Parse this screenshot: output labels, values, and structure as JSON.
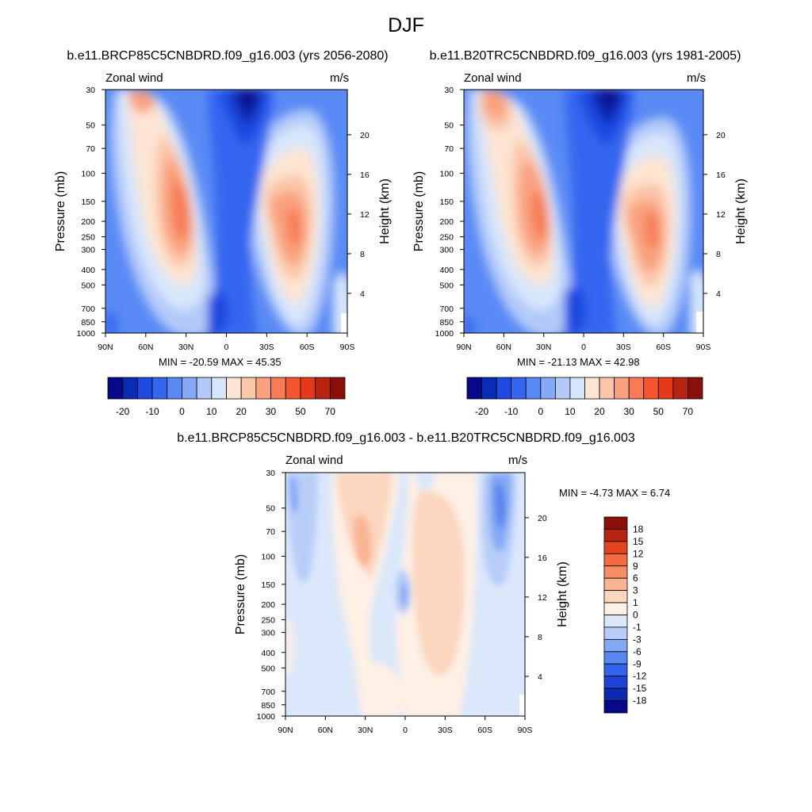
{
  "page": {
    "title": "DJF"
  },
  "palettes": {
    "full": [
      "#08088a",
      "#0a2bb5",
      "#1f4ae0",
      "#3566f0",
      "#5a8af5",
      "#86a9f7",
      "#b3caf9",
      "#d8e6fb",
      "#fde5d2",
      "#fbc6aa",
      "#f9a07e",
      "#f77b55",
      "#f5562f",
      "#e5391a",
      "#b82412",
      "#8a0f0a"
    ],
    "diff": [
      "#08088a",
      "#0b2ab0",
      "#1d44d4",
      "#3363ea",
      "#5887f0",
      "#86a9f5",
      "#b7cdf8",
      "#dbe7fb",
      "#fdf0e5",
      "#fcd6bf",
      "#fab494",
      "#f78d64",
      "#f56a3e",
      "#e5451e",
      "#b82412",
      "#8a0f0a"
    ]
  },
  "panels": [
    {
      "id": "future",
      "title": "b.e11.BRCP85C5CNBDRD.f09_g16.003 (yrs 2056-2080)",
      "variable": "Zonal wind",
      "units": "m/s",
      "stats": "MIN = -20.59  MAX = 45.35",
      "colorbar_labels": [
        "-20",
        "-10",
        "0",
        "10",
        "20",
        "30",
        "50",
        "70"
      ]
    },
    {
      "id": "present",
      "title": "b.e11.B20TRC5CNBDRD.f09_g16.003 (yrs 1981-2005)",
      "variable": "Zonal wind",
      "units": "m/s",
      "stats": "MIN = -21.13  MAX = 42.98",
      "colorbar_labels": [
        "-20",
        "-10",
        "0",
        "10",
        "20",
        "30",
        "50",
        "70"
      ]
    },
    {
      "id": "difference",
      "title": "b.e11.BRCP85C5CNBDRD.f09_g16.003 - b.e11.B20TRC5CNBDRD.f09_g16.003",
      "variable": "Zonal wind",
      "units": "m/s",
      "stats": "MIN =  -4.73  MAX =   6.74",
      "colorbar_labels": [
        "18",
        "15",
        "12",
        "9",
        "6",
        "3",
        "1",
        "0",
        "-1",
        "-3",
        "-6",
        "-9",
        "-12",
        "-15",
        "-18"
      ]
    }
  ],
  "chart_data": [
    {
      "type": "heatmap",
      "title": "b.e11.BRCP85C5CNBDRD.f09_g16.003 (yrs 2056-2080)",
      "variable": "Zonal wind",
      "units": "m/s",
      "xlabel": "",
      "ylabel": "Pressure (mb)",
      "y2label": "Height (km)",
      "x_ticks": [
        "90N",
        "60N",
        "30N",
        "0",
        "30S",
        "60S",
        "90S"
      ],
      "y_ticks": [
        "30",
        "50",
        "70",
        "100",
        "150",
        "200",
        "250",
        "300",
        "400",
        "500",
        "700",
        "850",
        "1000"
      ],
      "y2_ticks": [
        "4",
        "8",
        "12",
        "16",
        "20"
      ],
      "min": -20.59,
      "max": 45.35,
      "colorbar_levels": [
        -20,
        -10,
        0,
        10,
        20,
        30,
        50,
        70
      ],
      "features": [
        {
          "name": "NH jet core",
          "lat": 30,
          "pressure_mb": 200,
          "value": 45
        },
        {
          "name": "SH jet core",
          "lat": -52,
          "pressure_mb": 200,
          "value": 40
        },
        {
          "name": "Tropical easterlies",
          "lat": -12,
          "pressure_mb": 30,
          "value": -20
        }
      ]
    },
    {
      "type": "heatmap",
      "title": "b.e11.B20TRC5CNBDRD.f09_g16.003 (yrs 1981-2005)",
      "variable": "Zonal wind",
      "units": "m/s",
      "xlabel": "",
      "ylabel": "Pressure (mb)",
      "y2label": "Height (km)",
      "x_ticks": [
        "90N",
        "60N",
        "30N",
        "0",
        "30S",
        "60S",
        "90S"
      ],
      "y_ticks": [
        "30",
        "50",
        "70",
        "100",
        "150",
        "200",
        "250",
        "300",
        "400",
        "500",
        "700",
        "850",
        "1000"
      ],
      "y2_ticks": [
        "4",
        "8",
        "12",
        "16",
        "20"
      ],
      "min": -21.13,
      "max": 42.98,
      "colorbar_levels": [
        -20,
        -10,
        0,
        10,
        20,
        30,
        50,
        70
      ],
      "features": [
        {
          "name": "NH jet core",
          "lat": 31,
          "pressure_mb": 200,
          "value": 43
        },
        {
          "name": "SH jet core",
          "lat": -53,
          "pressure_mb": 200,
          "value": 38
        },
        {
          "name": "Tropical easterlies",
          "lat": -18,
          "pressure_mb": 30,
          "value": -21
        }
      ]
    },
    {
      "type": "heatmap",
      "title": "b.e11.BRCP85C5CNBDRD.f09_g16.003 - b.e11.B20TRC5CNBDRD.f09_g16.003",
      "variable": "Zonal wind",
      "units": "m/s",
      "xlabel": "",
      "ylabel": "Pressure (mb)",
      "y2label": "Height (km)",
      "x_ticks": [
        "90N",
        "60N",
        "30N",
        "0",
        "30S",
        "60S",
        "90S"
      ],
      "y_ticks": [
        "30",
        "50",
        "70",
        "100",
        "150",
        "200",
        "250",
        "300",
        "400",
        "500",
        "700",
        "850",
        "1000"
      ],
      "y2_ticks": [
        "4",
        "8",
        "12",
        "16",
        "20"
      ],
      "min": -4.73,
      "max": 6.74,
      "colorbar_levels": [
        -18,
        -15,
        -12,
        -9,
        -6,
        -3,
        -1,
        0,
        1,
        3,
        6,
        9,
        12,
        15,
        18
      ],
      "features": [
        {
          "name": "NH positive anomaly",
          "lat": 32,
          "pressure_mb": 70,
          "value": 6
        },
        {
          "name": "SH positive anomaly",
          "lat": -27,
          "pressure_mb": 100,
          "value": 4
        },
        {
          "name": "Polar negative anomaly",
          "lat": -70,
          "pressure_mb": 50,
          "value": -3
        }
      ]
    }
  ]
}
